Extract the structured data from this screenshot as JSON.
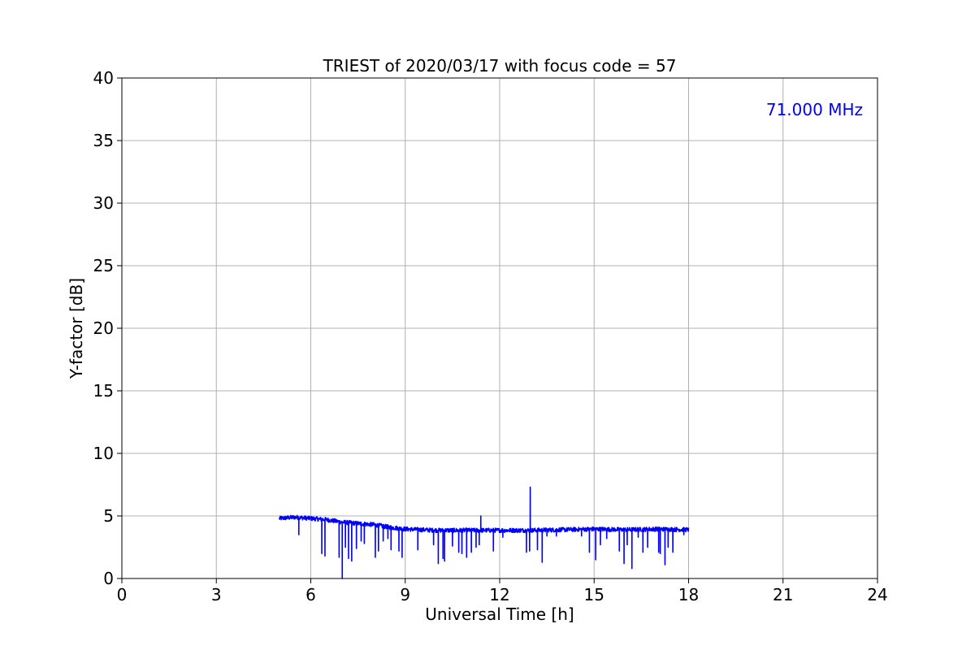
{
  "chart_data": {
    "type": "line",
    "title": "TRIEST of 2020/03/17 with focus code = 57",
    "xlabel": "Universal Time [h]",
    "ylabel": "Y-factor [dB]",
    "xlim": [
      0,
      24
    ],
    "ylim": [
      0,
      40
    ],
    "xticks": [
      0,
      3,
      6,
      9,
      12,
      15,
      18,
      21,
      24
    ],
    "yticks": [
      0,
      5,
      10,
      15,
      20,
      25,
      30,
      35,
      40
    ],
    "grid": true,
    "annotation": {
      "text": "71.000 MHz",
      "color": "#0000ff",
      "placement": "top-right"
    },
    "series": [
      {
        "color": "#0000ff",
        "baseline": [
          [
            5.0,
            4.8
          ],
          [
            5.5,
            4.9
          ],
          [
            6.0,
            4.8
          ],
          [
            6.5,
            4.7
          ],
          [
            7.0,
            4.5
          ],
          [
            7.5,
            4.4
          ],
          [
            8.0,
            4.3
          ],
          [
            8.5,
            4.1
          ],
          [
            9.0,
            3.95
          ],
          [
            9.5,
            3.9
          ],
          [
            10.0,
            3.85
          ],
          [
            11.0,
            3.85
          ],
          [
            12.0,
            3.85
          ],
          [
            13.0,
            3.85
          ],
          [
            14.0,
            3.9
          ],
          [
            15.0,
            3.95
          ],
          [
            16.0,
            3.9
          ],
          [
            17.0,
            3.95
          ],
          [
            18.0,
            3.9
          ]
        ],
        "spikes": [
          [
            5.62,
            3.5
          ],
          [
            6.35,
            2.0
          ],
          [
            6.45,
            1.8
          ],
          [
            6.9,
            1.7
          ],
          [
            7.0,
            0.0
          ],
          [
            7.1,
            2.5
          ],
          [
            7.2,
            1.6
          ],
          [
            7.3,
            1.4
          ],
          [
            7.45,
            2.4
          ],
          [
            7.6,
            3.0
          ],
          [
            7.7,
            2.8
          ],
          [
            8.05,
            1.7
          ],
          [
            8.15,
            2.2
          ],
          [
            8.3,
            3.0
          ],
          [
            8.45,
            3.2
          ],
          [
            8.55,
            2.3
          ],
          [
            8.8,
            2.2
          ],
          [
            8.9,
            1.7
          ],
          [
            9.4,
            2.3
          ],
          [
            9.9,
            2.7
          ],
          [
            10.05,
            1.2
          ],
          [
            10.2,
            1.6
          ],
          [
            10.25,
            1.4
          ],
          [
            10.5,
            2.6
          ],
          [
            10.7,
            2.1
          ],
          [
            10.8,
            2.0
          ],
          [
            10.95,
            1.7
          ],
          [
            11.1,
            2.1
          ],
          [
            11.25,
            2.5
          ],
          [
            11.35,
            2.7
          ],
          [
            11.4,
            5.0
          ],
          [
            11.8,
            2.2
          ],
          [
            12.1,
            3.3
          ],
          [
            12.85,
            2.1
          ],
          [
            12.95,
            2.2
          ],
          [
            12.97,
            7.3
          ],
          [
            13.2,
            2.3
          ],
          [
            13.35,
            1.3
          ],
          [
            13.5,
            3.4
          ],
          [
            13.8,
            3.4
          ],
          [
            14.6,
            3.4
          ],
          [
            14.85,
            2.1
          ],
          [
            15.05,
            1.5
          ],
          [
            15.2,
            2.7
          ],
          [
            15.4,
            3.2
          ],
          [
            15.8,
            2.2
          ],
          [
            15.95,
            1.2
          ],
          [
            16.05,
            2.7
          ],
          [
            16.2,
            0.8
          ],
          [
            16.4,
            3.3
          ],
          [
            16.55,
            2.1
          ],
          [
            16.7,
            2.5
          ],
          [
            17.05,
            2.1
          ],
          [
            17.1,
            2.0
          ],
          [
            17.25,
            1.1
          ],
          [
            17.35,
            2.5
          ],
          [
            17.5,
            2.1
          ],
          [
            17.85,
            3.5
          ]
        ]
      }
    ]
  }
}
